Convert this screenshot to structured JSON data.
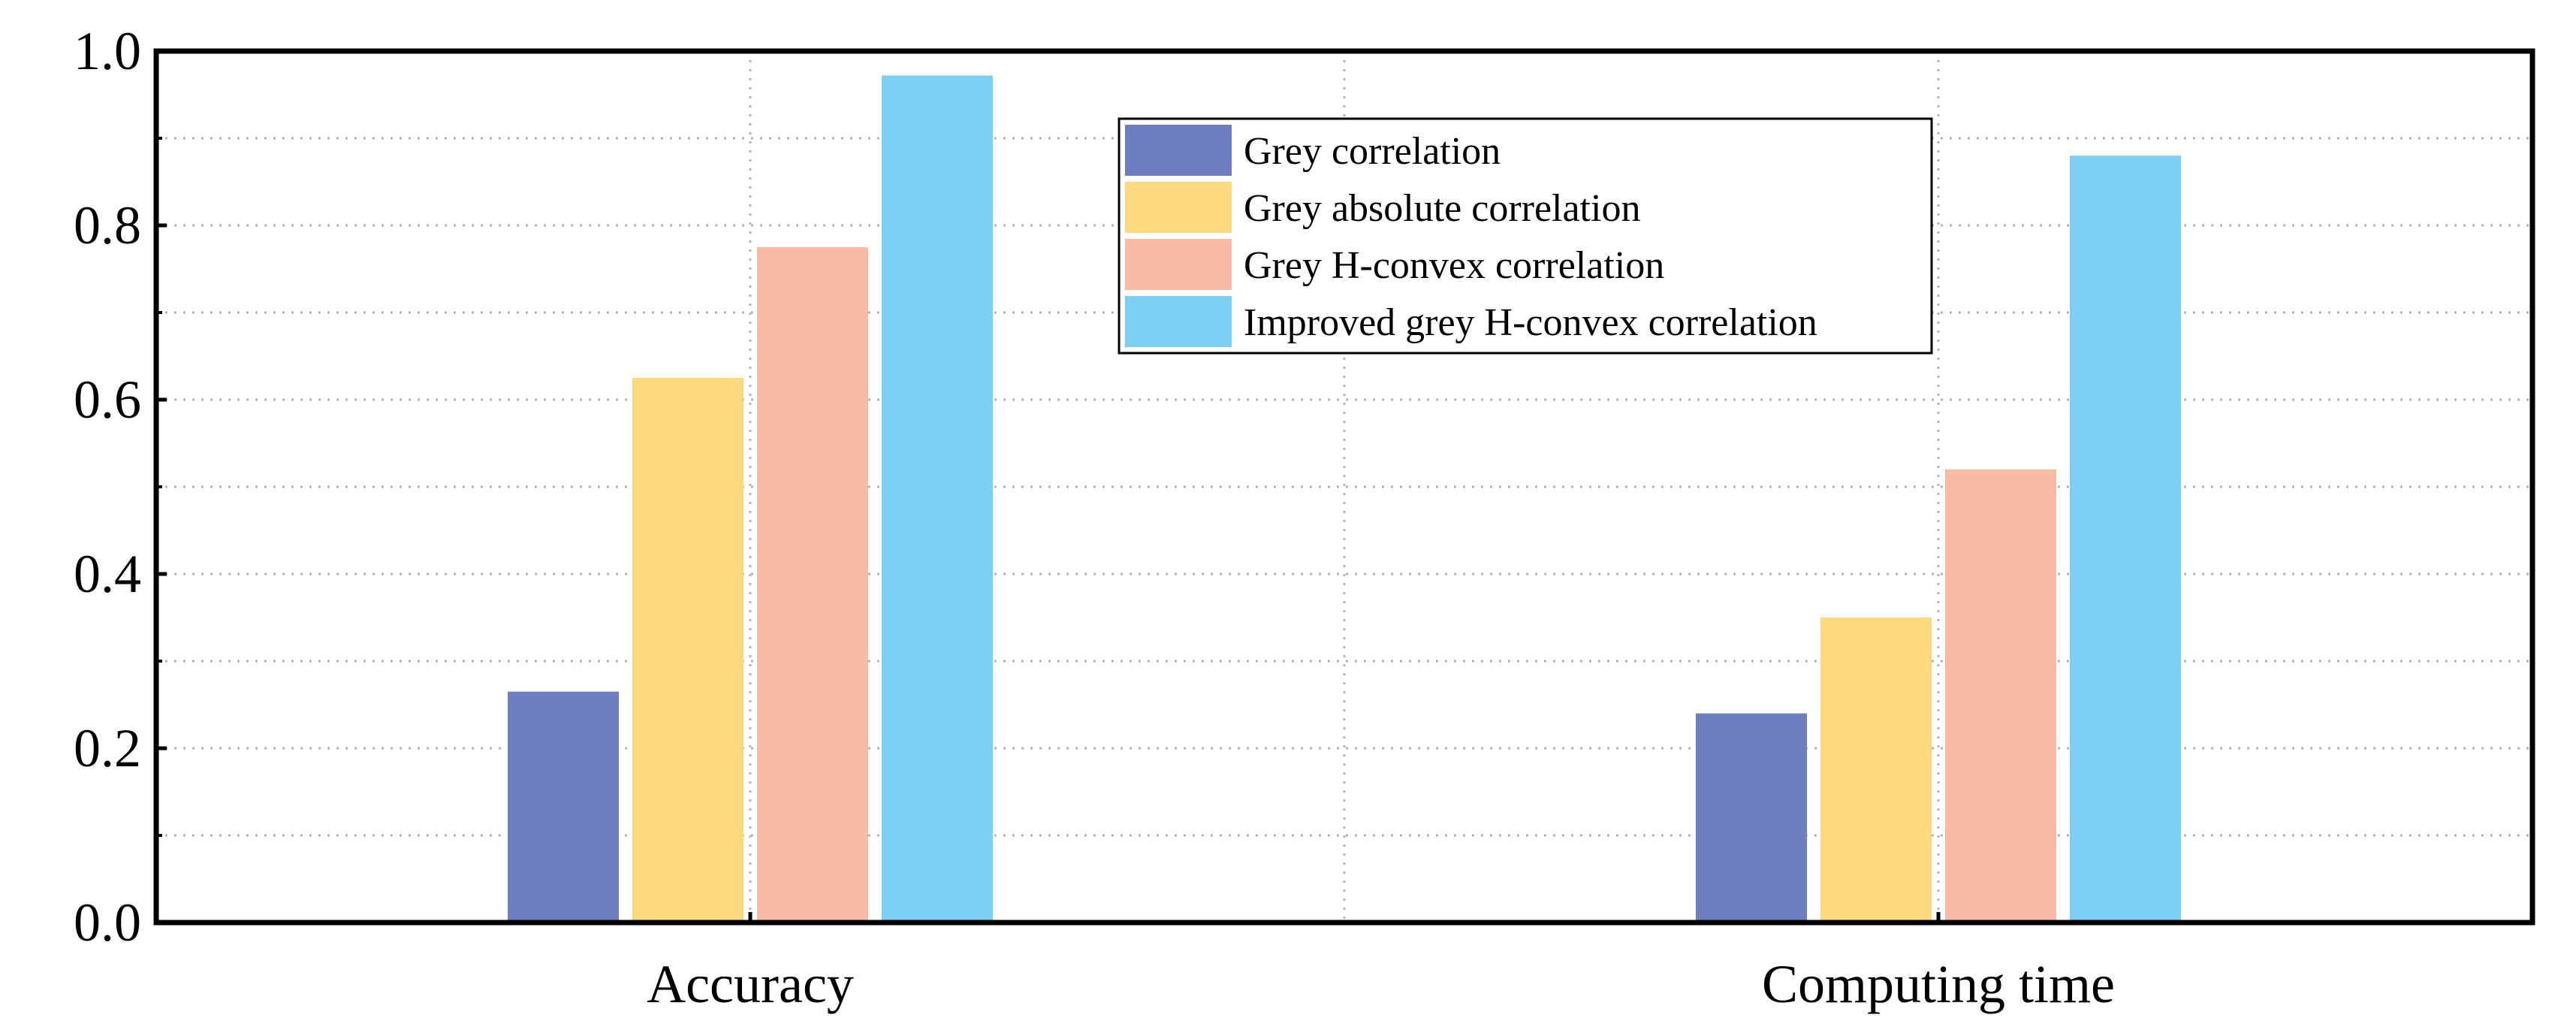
{
  "chart_data": {
    "type": "bar",
    "title": "",
    "xlabel": "",
    "ylabel": "",
    "ylim": [
      0,
      1.0
    ],
    "yticks": [
      "0.0",
      "0.2",
      "0.4",
      "0.6",
      "0.8",
      "1.0"
    ],
    "ytick_values": [
      0,
      0.2,
      0.4,
      0.6,
      0.8,
      1.0
    ],
    "minor_ytick_values": [
      0.1,
      0.3,
      0.5,
      0.7,
      0.9
    ],
    "grid": true,
    "legend_position": "top-center",
    "categories": [
      "Accuracy",
      "Computing time"
    ],
    "series": [
      {
        "name": "Grey correlation",
        "color": "#6d7fbf",
        "values": [
          0.265,
          0.24
        ]
      },
      {
        "name": "Grey absolute correlation",
        "color": "#fdd97d",
        "values": [
          0.625,
          0.35
        ]
      },
      {
        "name": "Grey H-convex correlation",
        "color": "#f8bba3",
        "values": [
          0.775,
          0.52
        ]
      },
      {
        "name": "Improved grey H-convex correlation",
        "color": "#7ccff4",
        "values": [
          0.972,
          0.88
        ]
      }
    ]
  }
}
